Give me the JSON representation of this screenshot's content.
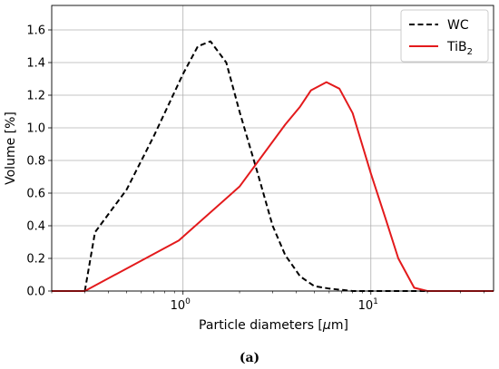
{
  "chart_data": {
    "type": "line",
    "x_scale": "log",
    "xlim": [
      0.2,
      45
    ],
    "ylim": [
      0,
      1.75
    ],
    "xlabel_prefix": "Particle diameters [",
    "xlabel_unit": "μ",
    "xlabel_suffix": "m]",
    "ylabel": "Volume [%]",
    "y_ticks": [
      0.0,
      0.2,
      0.4,
      0.6,
      0.8,
      1.0,
      1.2,
      1.4,
      1.6
    ],
    "y_tick_labels": [
      "0.0",
      "0.2",
      "0.4",
      "0.6",
      "0.8",
      "1.0",
      "1.2",
      "1.4",
      "1.6"
    ],
    "x_ticks": [
      1,
      10
    ],
    "x_tick_base": "10",
    "x_tick_exponents": [
      "0",
      "1"
    ],
    "grid": true,
    "legend_position": "top-right",
    "series": [
      {
        "name": "WC",
        "name_base": "WC",
        "name_sub": "",
        "color": "#000000",
        "style": "dashed",
        "x": [
          0.3,
          0.34,
          0.5,
          0.7,
          1.0,
          1.2,
          1.4,
          1.7,
          2.0,
          2.5,
          3.0,
          3.5,
          4.2,
          5.0,
          6.0,
          8.0,
          12.0,
          45.0
        ],
        "y": [
          0.0,
          0.36,
          0.62,
          0.95,
          1.33,
          1.5,
          1.53,
          1.4,
          1.1,
          0.72,
          0.4,
          0.22,
          0.09,
          0.03,
          0.015,
          0.0,
          0.0,
          0.0
        ]
      },
      {
        "name": "TiB2",
        "name_base": "TiB",
        "name_sub": "2",
        "color": "#e31a1c",
        "style": "solid",
        "x": [
          0.2,
          0.3,
          0.95,
          2.0,
          3.5,
          4.2,
          4.8,
          5.8,
          6.8,
          8.0,
          10.0,
          12.0,
          14.0,
          17.0,
          20.0,
          45.0
        ],
        "y": [
          0.0,
          0.0,
          0.31,
          0.64,
          1.02,
          1.13,
          1.23,
          1.28,
          1.24,
          1.09,
          0.72,
          0.44,
          0.2,
          0.02,
          0.0,
          0.0
        ]
      }
    ]
  },
  "caption": "(a)"
}
